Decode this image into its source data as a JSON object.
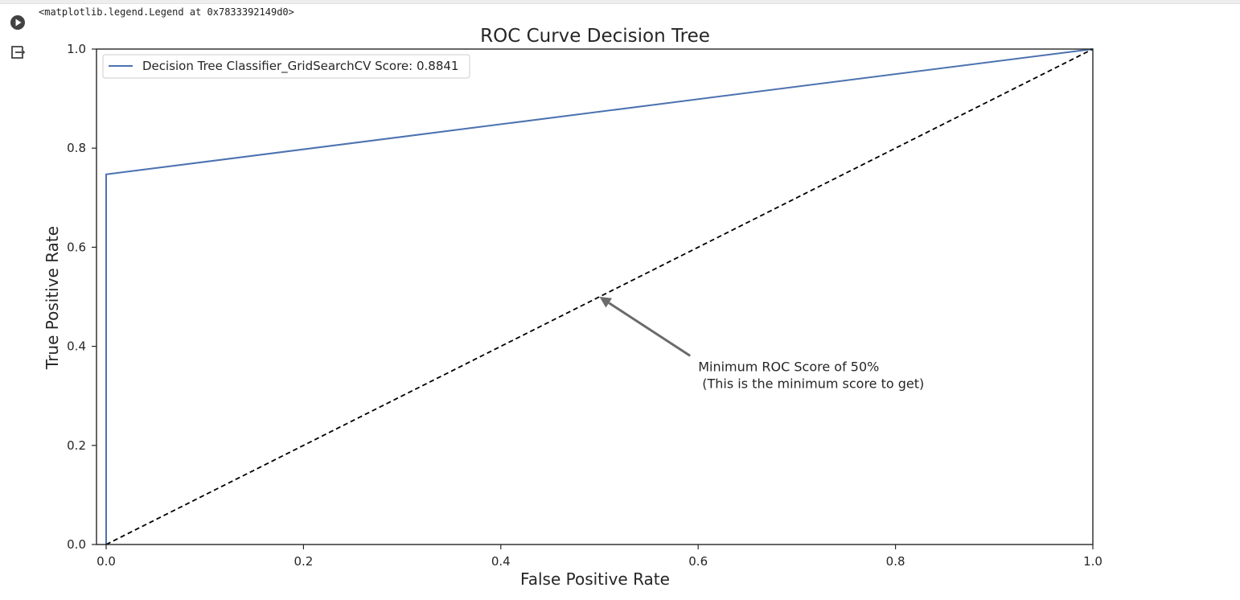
{
  "cell": {
    "output_text": "<matplotlib.legend.Legend at 0x7833392149d0>",
    "run_icon": "play-circle-icon",
    "output_icon": "output-redirect-icon"
  },
  "chart_data": {
    "type": "line",
    "title": "ROC Curve Decision Tree",
    "xlabel": "False Positive Rate",
    "ylabel": "True Positive Rate",
    "xlim": [
      0.0,
      1.0
    ],
    "ylim": [
      0.0,
      1.0
    ],
    "xticks": [
      0.0,
      0.2,
      0.4,
      0.6,
      0.8,
      1.0
    ],
    "yticks": [
      0.0,
      0.2,
      0.4,
      0.6,
      0.8,
      1.0
    ],
    "xtick_labels": [
      "0.0",
      "0.2",
      "0.4",
      "0.6",
      "0.8",
      "1.0"
    ],
    "ytick_labels": [
      "0.0",
      "0.2",
      "0.4",
      "0.6",
      "0.8",
      "1.0"
    ],
    "grid": false,
    "legend_position": "upper-left",
    "series": [
      {
        "name": "Decision Tree Classifier_GridSearchCV Score: 0.8841",
        "color": "#4c72b0",
        "style": "solid",
        "x": [
          0.0,
          0.0,
          1.0
        ],
        "y": [
          0.0,
          0.747,
          1.0
        ]
      },
      {
        "color": "#000000",
        "style": "dashed",
        "x": [
          0.0,
          1.0
        ],
        "y": [
          0.0,
          1.0
        ]
      }
    ],
    "annotation": {
      "lines": [
        "Minimum ROC Score of 50%",
        " (This is the minimum score to get)"
      ],
      "arrow_target": [
        0.5,
        0.5
      ],
      "text_anchor": [
        0.6,
        0.35
      ],
      "arrow_color": "#6b6b6b"
    }
  }
}
